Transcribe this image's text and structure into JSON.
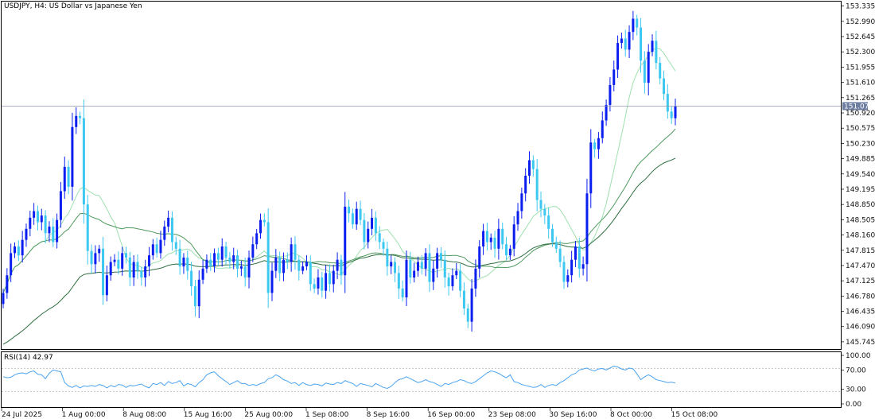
{
  "window": {
    "title": "USDJPY, H4:  US Dollar vs Japanese Yen"
  },
  "price_panel": {
    "price_ticks": [
      "153.335",
      "152.990",
      "152.645",
      "152.300",
      "151.955",
      "151.610",
      "151.265",
      "150.920",
      "150.575",
      "150.230",
      "149.885",
      "149.540",
      "149.195",
      "148.850",
      "148.505",
      "148.160",
      "147.815",
      "147.470",
      "147.125",
      "146.780",
      "146.435",
      "146.090",
      "145.745"
    ],
    "current_price": "151.073",
    "bid_line_color": "#8c96b4",
    "current_price_bg": "#6e7ea0"
  },
  "rsi_panel": {
    "title": "RSI(14) 42.97",
    "level_ticks": [
      "100.00",
      "70.00",
      "30.00",
      "0.00"
    ],
    "line_color": "#4aa3f0"
  },
  "time_axis": {
    "labels": [
      "24 Jul 2025",
      "1 Aug 00:00",
      "8 Aug 08:00",
      "15 Aug 16:00",
      "25 Aug 00:00",
      "1 Sep 08:00",
      "8 Sep 16:00",
      "16 Sep 00:00",
      "23 Sep 08:00",
      "30 Sep 16:00",
      "8 Oct 00:00",
      "15 Oct 08:00"
    ]
  },
  "colors": {
    "bull_candle": "#0a1ef0",
    "bear_candle": "#3cc8f0",
    "ma_fast": "#9fe0b0",
    "ma_mid": "#4f9a5f",
    "ma_slow": "#2e6e40",
    "frame": "#000000"
  },
  "chart_data": {
    "type": "candlestick",
    "symbol": "USDJPY",
    "timeframe": "H4",
    "ylim": [
      145.6,
      153.4
    ],
    "rsi_ylim": [
      0,
      100
    ],
    "close": [
      146.85,
      147.25,
      147.75,
      147.9,
      147.7,
      148.05,
      148.3,
      148.55,
      148.7,
      148.45,
      148.6,
      148.2,
      148.35,
      148.0,
      148.5,
      149.15,
      149.7,
      149.25,
      150.6,
      150.85,
      150.8,
      148.85,
      147.8,
      147.5,
      147.75,
      147.85,
      146.8,
      147.25,
      147.55,
      147.6,
      147.4,
      147.75,
      147.65,
      147.2,
      147.55,
      147.35,
      147.2,
      147.45,
      147.7,
      147.95,
      147.75,
      148.05,
      148.35,
      148.55,
      148.0,
      147.85,
      147.45,
      147.65,
      147.35,
      147.0,
      146.55,
      147.15,
      147.4,
      147.6,
      147.45,
      147.75,
      147.6,
      147.9,
      147.65,
      147.55,
      147.7,
      147.4,
      147.45,
      147.2,
      147.65,
      147.95,
      148.2,
      148.5,
      148.45,
      146.85,
      147.35,
      147.65,
      147.3,
      147.6,
      147.55,
      147.95,
      147.6,
      147.35,
      147.45,
      147.55,
      147.05,
      146.95,
      147.2,
      146.9,
      147.3,
      147.05,
      147.35,
      147.6,
      147.25,
      148.8,
      148.65,
      148.4,
      148.75,
      148.5,
      148.0,
      148.3,
      148.55,
      148.2,
      148.0,
      147.85,
      147.45,
      147.55,
      147.3,
      146.95,
      146.75,
      147.6,
      147.2,
      147.35,
      147.55,
      147.4,
      147.75,
      147.1,
      147.4,
      147.75,
      147.6,
      147.2,
      147.0,
      147.25,
      147.35,
      146.9,
      146.5,
      146.2,
      146.95,
      147.4,
      147.9,
      148.25,
      148.0,
      148.1,
      147.85,
      148.3,
      147.95,
      147.7,
      147.85,
      148.4,
      148.7,
      149.1,
      149.5,
      149.85,
      149.65,
      148.95,
      148.75,
      148.6,
      148.3,
      148.0,
      147.85,
      147.55,
      147.1,
      147.25,
      147.6,
      147.9,
      147.4,
      147.5,
      149.1,
      150.25,
      150.1,
      150.35,
      150.75,
      151.1,
      151.55,
      151.9,
      152.5,
      152.6,
      152.35,
      152.75,
      153.05,
      152.85,
      152.1,
      151.6,
      152.3,
      152.55,
      152.05,
      151.7,
      151.35,
      150.95,
      150.8,
      151.07
    ],
    "rsi": [
      56,
      54,
      55,
      60,
      63,
      64,
      62,
      66,
      68,
      61,
      60,
      52,
      63,
      70,
      68,
      66,
      44,
      37,
      34,
      38,
      33,
      37,
      36,
      38,
      36,
      40,
      38,
      33,
      38,
      35,
      40,
      39,
      34,
      38,
      37,
      39,
      41,
      36,
      33,
      42,
      40,
      44,
      38,
      46,
      42,
      44,
      48,
      37,
      42,
      40,
      35,
      44,
      50,
      60,
      64,
      66,
      58,
      52,
      46,
      40,
      44,
      48,
      42,
      42,
      38,
      40,
      38,
      42,
      44,
      52,
      54,
      60,
      56,
      50,
      47,
      42,
      44,
      38,
      44,
      40,
      38,
      41,
      40,
      37,
      43,
      41,
      40,
      44,
      42,
      48,
      45,
      42,
      36,
      42,
      40,
      38,
      35,
      42,
      38,
      34,
      32,
      36,
      44,
      50,
      52,
      56,
      52,
      48,
      44,
      46,
      50,
      46,
      44,
      40,
      36,
      42,
      40,
      44,
      46,
      50,
      48,
      44,
      42,
      46,
      52,
      58,
      64,
      68,
      66,
      63,
      58,
      54,
      60,
      46,
      44,
      40,
      38,
      36,
      34,
      35,
      40,
      34,
      38,
      40,
      38,
      44,
      48,
      54,
      60,
      63,
      70,
      72,
      74,
      70,
      68,
      72,
      73,
      70,
      74,
      78,
      76,
      72,
      70,
      74,
      72,
      62,
      50,
      56,
      60,
      56,
      50,
      48,
      46,
      44,
      45,
      42.97
    ]
  }
}
